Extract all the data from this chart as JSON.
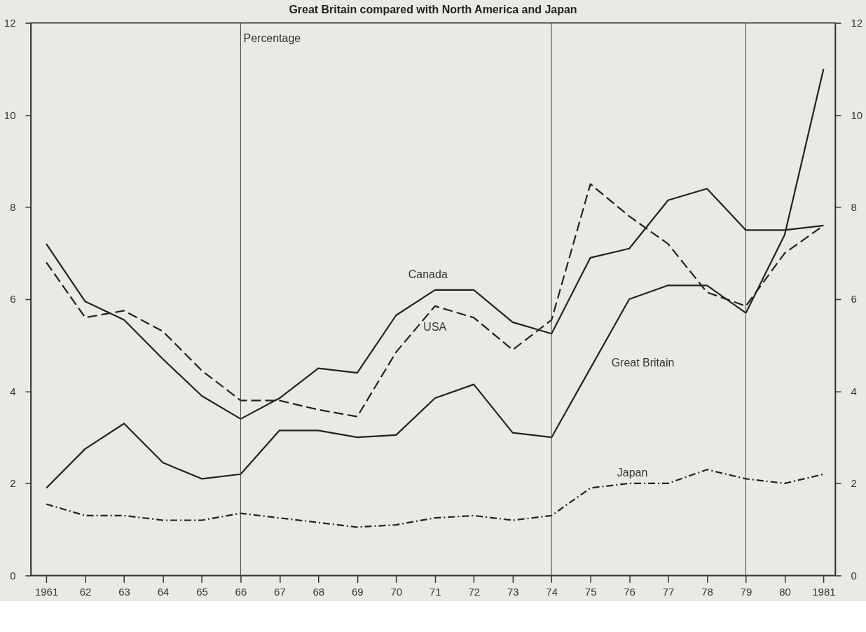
{
  "chart_data": {
    "type": "line",
    "title": "Great Britain compared with North America and Japan",
    "ylabel": "Percentage",
    "x": [
      1961,
      1962,
      1963,
      1964,
      1965,
      1966,
      1967,
      1968,
      1969,
      1970,
      1971,
      1972,
      1973,
      1974,
      1975,
      1976,
      1977,
      1978,
      1979,
      1980,
      1981
    ],
    "series": [
      {
        "name": "Canada",
        "color": "#222222",
        "line_style": "solid",
        "values": [
          7.2,
          5.95,
          5.55,
          4.7,
          3.9,
          3.4,
          3.85,
          4.5,
          4.4,
          5.65,
          6.2,
          6.2,
          5.5,
          5.25,
          6.9,
          7.1,
          8.15,
          8.4,
          7.5,
          7.5,
          7.6
        ]
      },
      {
        "name": "USA",
        "color": "#222222",
        "line_style": "dashed",
        "values": [
          6.8,
          5.6,
          5.75,
          5.3,
          4.45,
          3.8,
          3.8,
          3.6,
          3.45,
          4.85,
          5.85,
          5.6,
          4.9,
          5.55,
          8.5,
          7.8,
          7.2,
          6.15,
          5.85,
          7.0,
          7.6
        ]
      },
      {
        "name": "Great Britain",
        "color": "#222222",
        "line_style": "solid",
        "values": [
          1.9,
          2.75,
          3.3,
          2.45,
          2.1,
          2.2,
          3.15,
          3.15,
          3.0,
          3.05,
          3.85,
          4.15,
          3.1,
          3.0,
          4.5,
          6.0,
          6.3,
          6.3,
          5.7,
          7.4,
          11.0
        ]
      },
      {
        "name": "Japan",
        "color": "#222222",
        "line_style": "dotted",
        "values": [
          1.55,
          1.3,
          1.3,
          1.2,
          1.2,
          1.35,
          1.25,
          1.15,
          1.05,
          1.1,
          1.25,
          1.3,
          1.2,
          1.3,
          1.9,
          2.0,
          2.0,
          2.3,
          2.1,
          2.0,
          2.2
        ]
      }
    ],
    "xlim": [
      1960.6,
      1981.3
    ],
    "xticks": [
      1961,
      {
        "value": 1962,
        "label": "62"
      },
      {
        "value": 1963,
        "label": "63"
      },
      {
        "value": 1964,
        "label": "64"
      },
      {
        "value": 1965,
        "label": "65"
      },
      {
        "value": 1966,
        "label": "66"
      },
      {
        "value": 1967,
        "label": "67"
      },
      {
        "value": 1968,
        "label": "68"
      },
      {
        "value": 1969,
        "label": "69"
      },
      {
        "value": 1970,
        "label": "70"
      },
      {
        "value": 1971,
        "label": "71"
      },
      {
        "value": 1972,
        "label": "72"
      },
      {
        "value": 1973,
        "label": "73"
      },
      {
        "value": 1974,
        "label": "74"
      },
      {
        "value": 1975,
        "label": "75"
      },
      {
        "value": 1976,
        "label": "76"
      },
      {
        "value": 1977,
        "label": "77"
      },
      {
        "value": 1978,
        "label": "78"
      },
      {
        "value": 1979,
        "label": "79"
      },
      {
        "value": 1980,
        "label": "80"
      },
      1981
    ],
    "ylim": [
      0,
      12
    ],
    "yticks": [
      0,
      2,
      4,
      6,
      8,
      10,
      12
    ],
    "y2lim": [
      0,
      12
    ],
    "y2ticks": [
      0,
      2,
      4,
      6,
      8,
      10,
      12
    ],
    "ref_lines": [
      {
        "axis": "x",
        "value": 1966,
        "color": "#444444"
      },
      {
        "axis": "x",
        "value": 1974,
        "color": "#444444"
      },
      {
        "axis": "x",
        "value": 1979,
        "color": "#444444"
      }
    ],
    "grid": false,
    "marker": "none"
  }
}
